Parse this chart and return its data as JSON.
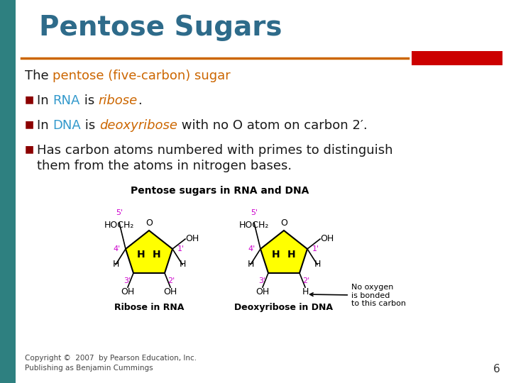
{
  "title": "Pentose Sugars",
  "title_color": "#2E6B8A",
  "bg_color": "#FFFFFF",
  "left_bar_color": "#2E8080",
  "orange_line_color": "#CC6600",
  "red_rect_color": "#CC0000",
  "body_text_color": "#1A1A1A",
  "highlight_orange": "#CC6600",
  "highlight_blue": "#3399CC",
  "bullet_color": "#8B0000",
  "line1_plain": "The ",
  "line1_highlight": "pentose (five-carbon) sugar",
  "bullet3_line1": "Has carbon atoms numbered with primes to distinguish",
  "bullet3_line2": "them from the atoms in nitrogen bases.",
  "diagram_title": "Pentose sugars in RNA and DNA",
  "diagram_label1": "Ribose in RNA",
  "diagram_label2": "Deoxyribose in DNA",
  "copyright": "Copyright ©  2007  by Pearson Education, Inc.\nPublishing as Benjamin Cummings",
  "page_number": "6",
  "sugar_color": "#FFFF00",
  "note_text": "No oxygen\nis bonded\nto this carbon",
  "magenta": "#CC00CC"
}
